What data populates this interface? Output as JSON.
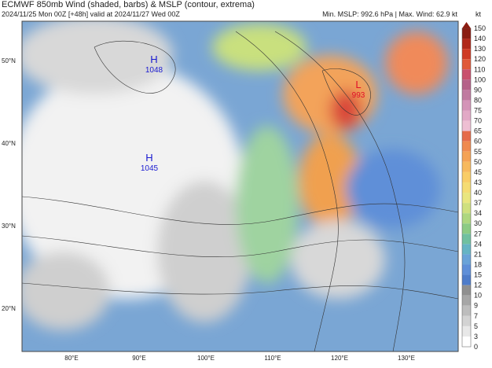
{
  "header": {
    "title": "ECMWF 850mb Wind (shaded, barbs) & MSLP (contour, extrema)",
    "subtitle": "2024/11/25 Mon 00Z [+48h] valid at 2024/11/27 Wed 00Z",
    "stats": "Min. MSLP: 992.6 hPa | Max. Wind: 62.9 kt"
  },
  "colorbar": {
    "unit": "kt",
    "labels": [
      150,
      140,
      130,
      120,
      110,
      100,
      90,
      80,
      75,
      70,
      65,
      60,
      55,
      50,
      45,
      43,
      40,
      37,
      34,
      30,
      27,
      24,
      21,
      18,
      15,
      12,
      10,
      9,
      7,
      5,
      3,
      0
    ],
    "colors": [
      "#8b1d12",
      "#b0281a",
      "#cf3b25",
      "#e05a3a",
      "#c94f6d",
      "#b56189",
      "#c07aa0",
      "#d494b8",
      "#e2a9c6",
      "#eebfd3",
      "#e56b4a",
      "#ef8a4f",
      "#f4a255",
      "#f7b95e",
      "#f9cd67",
      "#f5dc73",
      "#e9e67f",
      "#cfe07e",
      "#aed77f",
      "#8ccb84",
      "#70c0a0",
      "#66b4c4",
      "#6aa3d8",
      "#5f8fd8",
      "#4e7cc9",
      "#8f8f8f",
      "#a6a6a6",
      "#bdbdbd",
      "#d3d3d3",
      "#e8e8e8",
      "#ffffff"
    ]
  },
  "axes": {
    "lon": [
      "80°E",
      "90°E",
      "100°E",
      "110°E",
      "120°E",
      "130°E"
    ],
    "lat": [
      "50°N",
      "40°N",
      "30°N",
      "20°N"
    ]
  },
  "extrema": [
    {
      "type": "H",
      "value": "1048"
    },
    {
      "type": "H",
      "value": "1045"
    },
    {
      "type": "L",
      "value": "993"
    }
  ]
}
